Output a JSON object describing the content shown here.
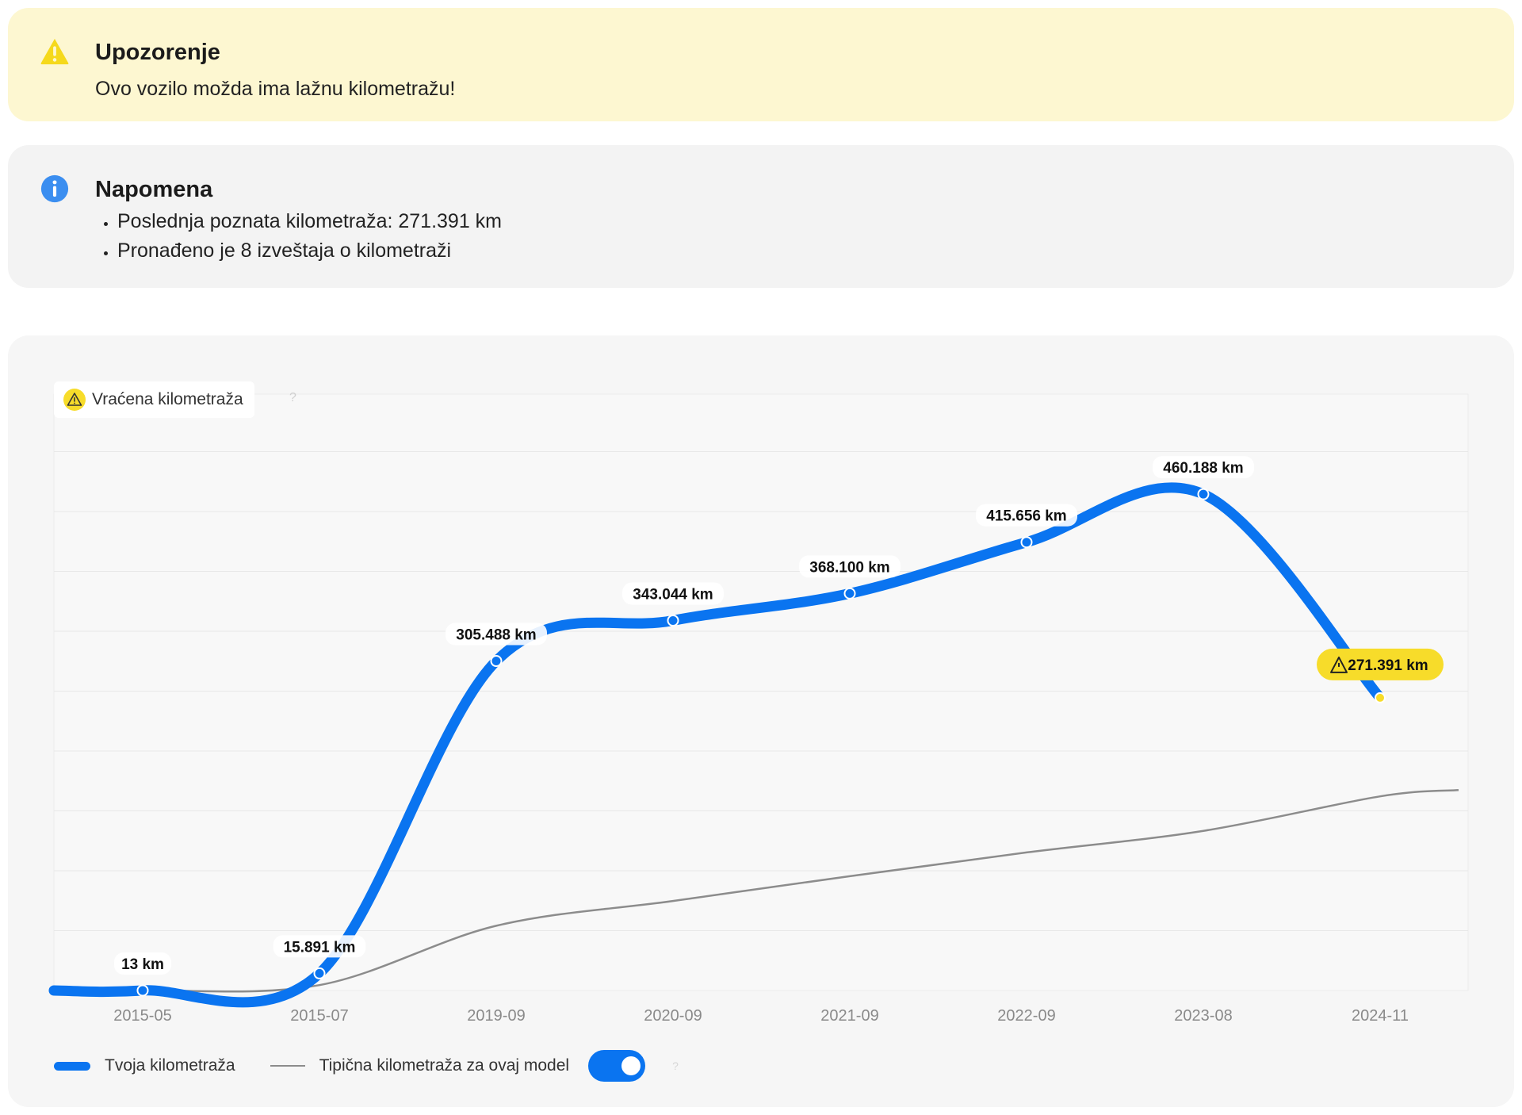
{
  "warning": {
    "title": "Upozorenje",
    "message": "Ovo vozilo možda ima lažnu kilometražu!",
    "icon": "warning-triangle-icon",
    "color": "#f5d91c"
  },
  "note": {
    "title": "Napomena",
    "icon": "info-icon",
    "color": "#3b8ef0",
    "items": [
      "Poslednja poznata kilometraža: 271.391 km",
      "Pronađeno je 8 izveštaja o kilometraži"
    ]
  },
  "badge": {
    "label": "Vraćena kilometraža",
    "icon": "warning-triangle-icon",
    "help": "?"
  },
  "legend": {
    "yours": "Tvoja kilometraža",
    "typical": "Tipična kilometraža za ovaj model",
    "toggle_on": true,
    "help": "?"
  },
  "chart_data": {
    "type": "line",
    "categories": [
      "2015-05",
      "2015-07",
      "2019-09",
      "2020-09",
      "2021-09",
      "2022-09",
      "2023-08",
      "2024-11"
    ],
    "series": [
      {
        "name": "Tvoja kilometraža",
        "color": "#0a74f0",
        "values": [
          13,
          15891,
          305488,
          343044,
          368100,
          415656,
          460188,
          271391
        ],
        "labels": [
          "13 km",
          "15.891 km",
          "305.488 km",
          "343.044 km",
          "368.100 km",
          "415.656 km",
          "460.188 km",
          "271.391 km"
        ],
        "highlight_index": 7,
        "highlight_color": "#f7dc2a"
      },
      {
        "name": "Tipična kilometraža za ovaj model",
        "color": "#8c8c8c",
        "values": [
          0,
          5000,
          60000,
          83000,
          106000,
          128000,
          148000,
          180000
        ]
      }
    ],
    "ylim": [
      0,
      500000
    ],
    "grid": true,
    "legend": "bottom-left"
  }
}
